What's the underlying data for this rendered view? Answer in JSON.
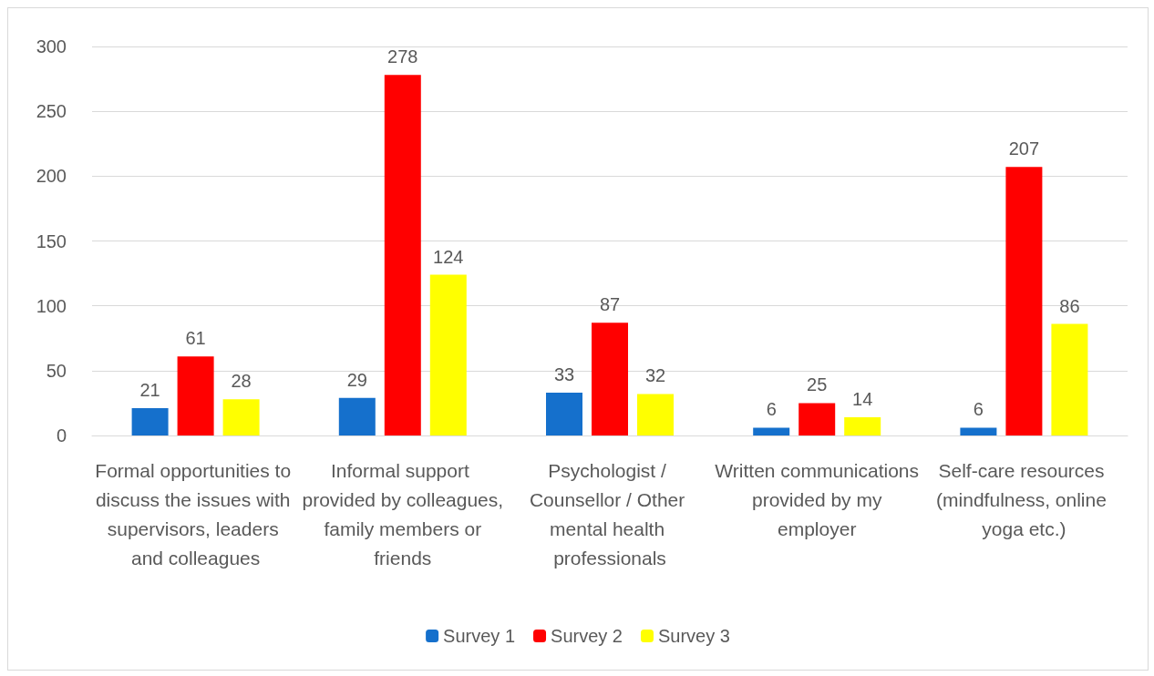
{
  "chart_data": {
    "type": "bar",
    "categories": [
      "Formal opportunities to discuss the issues with supervisors, leaders and colleagues",
      "Informal support provided by colleagues, family members or friends",
      "Psychologist / Counsellor / Other mental health professionals",
      "Written communications provided by my employer",
      "Self-care resources (mindfulness, online yoga etc.)"
    ],
    "series": [
      {
        "name": "Survey 1",
        "color": "#1570cc",
        "values": [
          21,
          29,
          33,
          6,
          6
        ]
      },
      {
        "name": "Survey 2",
        "color": "#ff0000",
        "values": [
          61,
          278,
          87,
          25,
          207
        ]
      },
      {
        "name": "Survey 3",
        "color": "#ffff00",
        "values": [
          28,
          124,
          32,
          14,
          86
        ]
      }
    ],
    "ylim": [
      0,
      300
    ],
    "yticks": [
      0,
      50,
      100,
      150,
      200,
      250,
      300
    ],
    "grid": "y",
    "legend": "bottom",
    "data_labels": true
  }
}
